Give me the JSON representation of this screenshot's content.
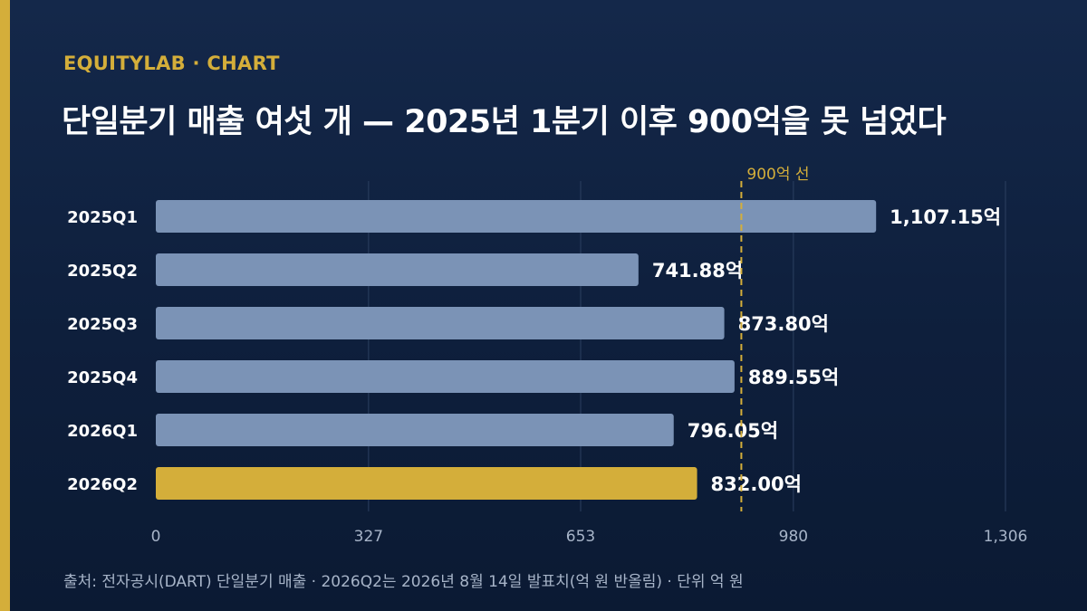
{
  "header": {
    "brand": "EQUITYLAB · CHART",
    "title": "단일분기 매출 여섯 개 — 2025년 1분기 이후 900억을 못 넘었다"
  },
  "chart_data": {
    "type": "bar",
    "orientation": "horizontal",
    "categories": [
      "2025Q1",
      "2025Q2",
      "2025Q3",
      "2025Q4",
      "2026Q1",
      "2026Q2"
    ],
    "values": [
      1107.15,
      741.88,
      873.8,
      889.55,
      796.05,
      832.0
    ],
    "value_labels": [
      "1,107.15억",
      "741.88억",
      "873.80억",
      "889.55억",
      "796.05억",
      "832.00억"
    ],
    "highlight_category": "2026Q2",
    "xlim": [
      0,
      1306
    ],
    "x_ticks": [
      0,
      327,
      653,
      980,
      1306
    ],
    "x_tick_labels": [
      "0",
      "327",
      "653",
      "980",
      "1,306"
    ],
    "grid": true,
    "reference_line": {
      "value": 900,
      "label": "900억 선"
    },
    "colors": {
      "bar": "#7b93b6",
      "highlight": "#d4ae3a",
      "reference": "#d4ae3a",
      "grid": "#2b3f60",
      "tick_label": "#a7b4c8",
      "value_label": "#ffffff"
    }
  },
  "footer": {
    "source": "출처: 전자공시(DART) 단일분기 매출 · 2026Q2는 2026년 8월 14일 발표치(억 원 반올림) · 단위 억 원"
  }
}
